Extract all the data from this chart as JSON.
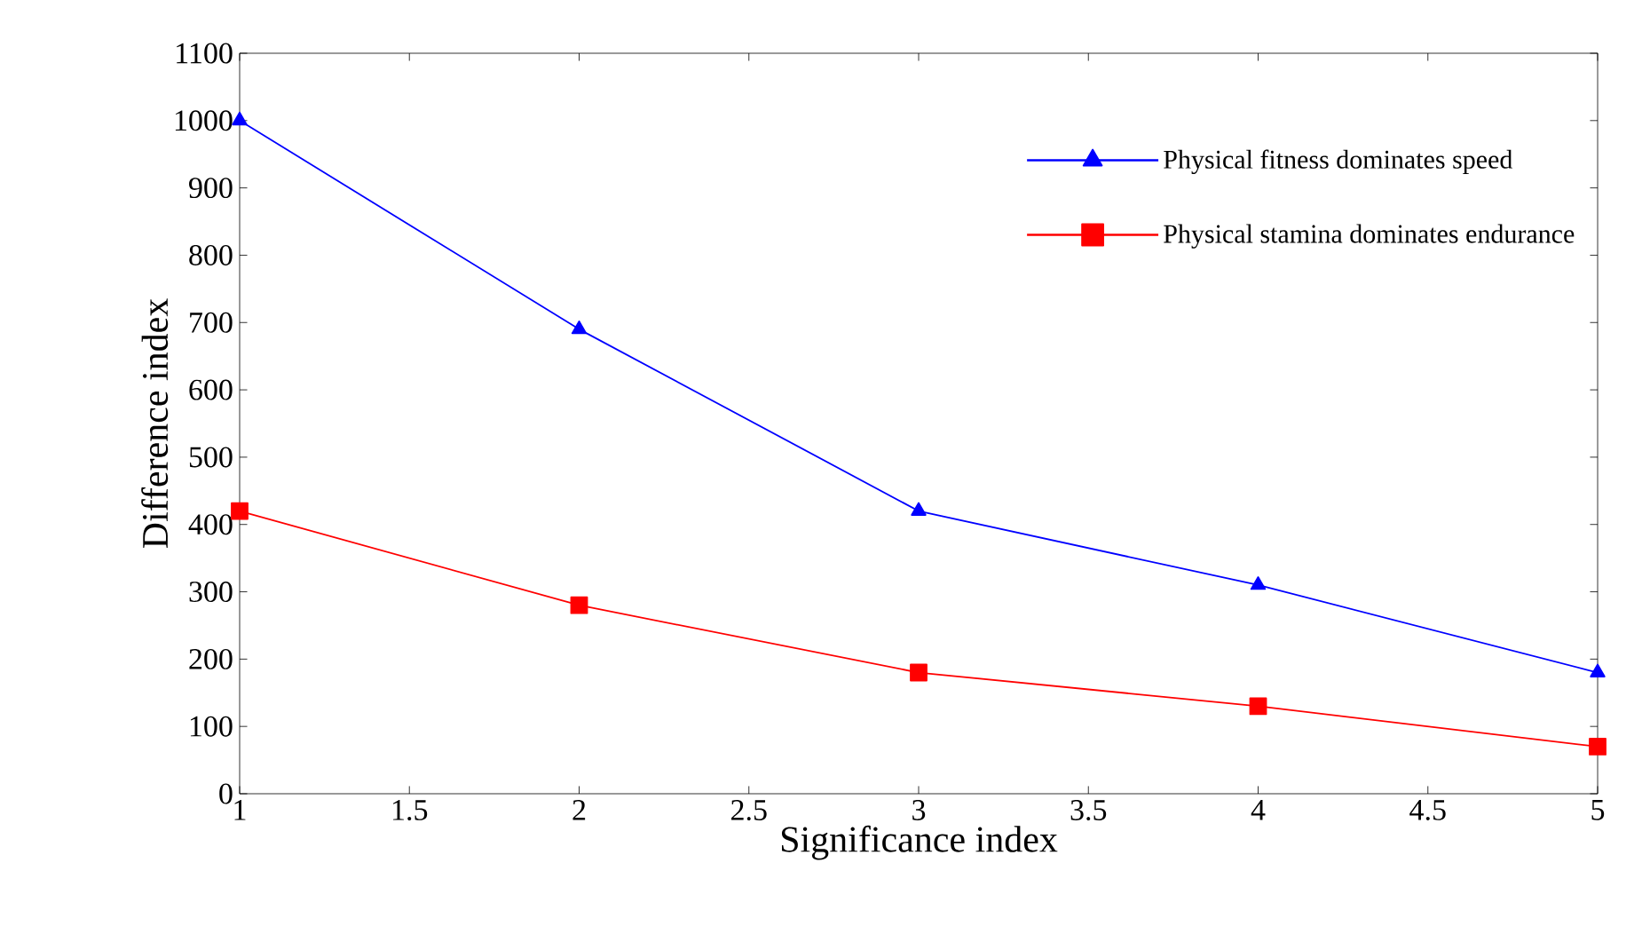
{
  "chart_data": {
    "type": "line",
    "xlabel": "Significance index",
    "ylabel": "Difference index",
    "x": [
      1,
      2,
      3,
      4,
      5
    ],
    "series": [
      {
        "name": "Physical fitness dominates speed",
        "color": "#0000ff",
        "marker": "triangle",
        "values": [
          1000,
          690,
          420,
          310,
          180
        ]
      },
      {
        "name": "Physical stamina dominates endurance",
        "color": "#ff0000",
        "marker": "square",
        "values": [
          420,
          280,
          180,
          130,
          70
        ]
      }
    ],
    "xlim": [
      1,
      5
    ],
    "xticks": [
      1,
      1.5,
      2,
      2.5,
      3,
      3.5,
      4,
      4.5,
      5
    ],
    "ylim": [
      0,
      1100
    ],
    "yticks": [
      0,
      100,
      200,
      300,
      400,
      500,
      600,
      700,
      800,
      900,
      1000,
      1100
    ],
    "grid": false,
    "legend": "top right",
    "line_style": "solid"
  }
}
